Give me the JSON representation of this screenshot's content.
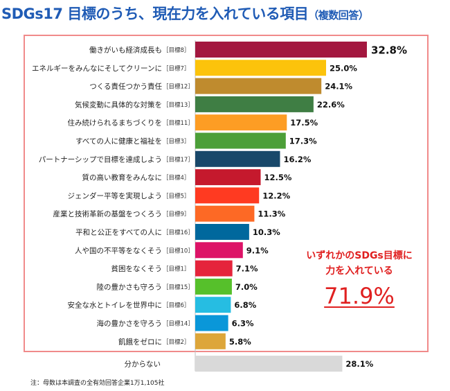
{
  "title": {
    "main": "SDGs17 目標のうち、現在力を入れている項目",
    "sub": "（複数回答）"
  },
  "callout": {
    "line1": "いずれかのSDGs目標に",
    "line2": "力を入れている",
    "value": "71.9%"
  },
  "note": "注：母数は本調査の全有効回答企業1万1,105社",
  "chart_data": {
    "type": "bar",
    "orientation": "horizontal",
    "title": "SDGs17 目標のうち、現在力を入れている項目（複数回答）",
    "unit": "%",
    "xlim": [
      0,
      35
    ],
    "categories": [
      {
        "label": "働きがいも経済成長も",
        "tag": "［目標8］",
        "value": 32.8,
        "display": "32.8%",
        "color": "#a3173f"
      },
      {
        "label": "エネルギーをみんなにそしてクリーンに",
        "tag": "［目標7］",
        "value": 25.0,
        "display": "25.0%",
        "color": "#fcc30b"
      },
      {
        "label": "つくる責任つかう責任",
        "tag": "［目標12］",
        "value": 24.1,
        "display": "24.1%",
        "color": "#bf8b2e"
      },
      {
        "label": "気候変動に具体的な対策を",
        "tag": "［目標13］",
        "value": 22.6,
        "display": "22.6%",
        "color": "#3f7e44"
      },
      {
        "label": "住み続けられるまちづくりを",
        "tag": "［目標11］",
        "value": 17.5,
        "display": "17.5%",
        "color": "#fd9d24"
      },
      {
        "label": "すべての人に健康と福祉を",
        "tag": "［目標3］",
        "value": 17.3,
        "display": "17.3%",
        "color": "#4c9f38"
      },
      {
        "label": "パートナーシップで目標を達成しよう",
        "tag": "［目標17］",
        "value": 16.2,
        "display": "16.2%",
        "color": "#19486a"
      },
      {
        "label": "質の高い教育をみんなに",
        "tag": "［目標4］",
        "value": 12.5,
        "display": "12.5%",
        "color": "#c5192d"
      },
      {
        "label": "ジェンダー平等を実現しよう",
        "tag": "［目標5］",
        "value": 12.2,
        "display": "12.2%",
        "color": "#ff3a21"
      },
      {
        "label": "産業と技術革新の基盤をつくろう",
        "tag": "［目標9］",
        "value": 11.3,
        "display": "11.3%",
        "color": "#fd6925"
      },
      {
        "label": "平和と公正をすべての人に",
        "tag": "［目標16］",
        "value": 10.3,
        "display": "10.3%",
        "color": "#00689d"
      },
      {
        "label": "人や国の不平等をなくそう",
        "tag": "［目標10］",
        "value": 9.1,
        "display": "9.1%",
        "color": "#dd1367"
      },
      {
        "label": "貧困をなくそう",
        "tag": "［目標1］",
        "value": 7.1,
        "display": "7.1%",
        "color": "#e5243b"
      },
      {
        "label": "陸の豊かさも守ろう",
        "tag": "［目標15］",
        "value": 7.0,
        "display": "7.0%",
        "color": "#56c02b"
      },
      {
        "label": "安全な水とトイレを世界中に",
        "tag": "［目標6］",
        "value": 6.8,
        "display": "6.8%",
        "color": "#26bde2"
      },
      {
        "label": "海の豊かさを守ろう",
        "tag": "［目標14］",
        "value": 6.3,
        "display": "6.3%",
        "color": "#0a97d9"
      },
      {
        "label": "飢餓をゼロに",
        "tag": "［目標2］",
        "value": 5.8,
        "display": "5.8%",
        "color": "#dda63a"
      },
      {
        "label": "分からない",
        "tag": "",
        "value": 28.1,
        "display": "28.1%",
        "color": "#d9d9d9"
      }
    ]
  }
}
